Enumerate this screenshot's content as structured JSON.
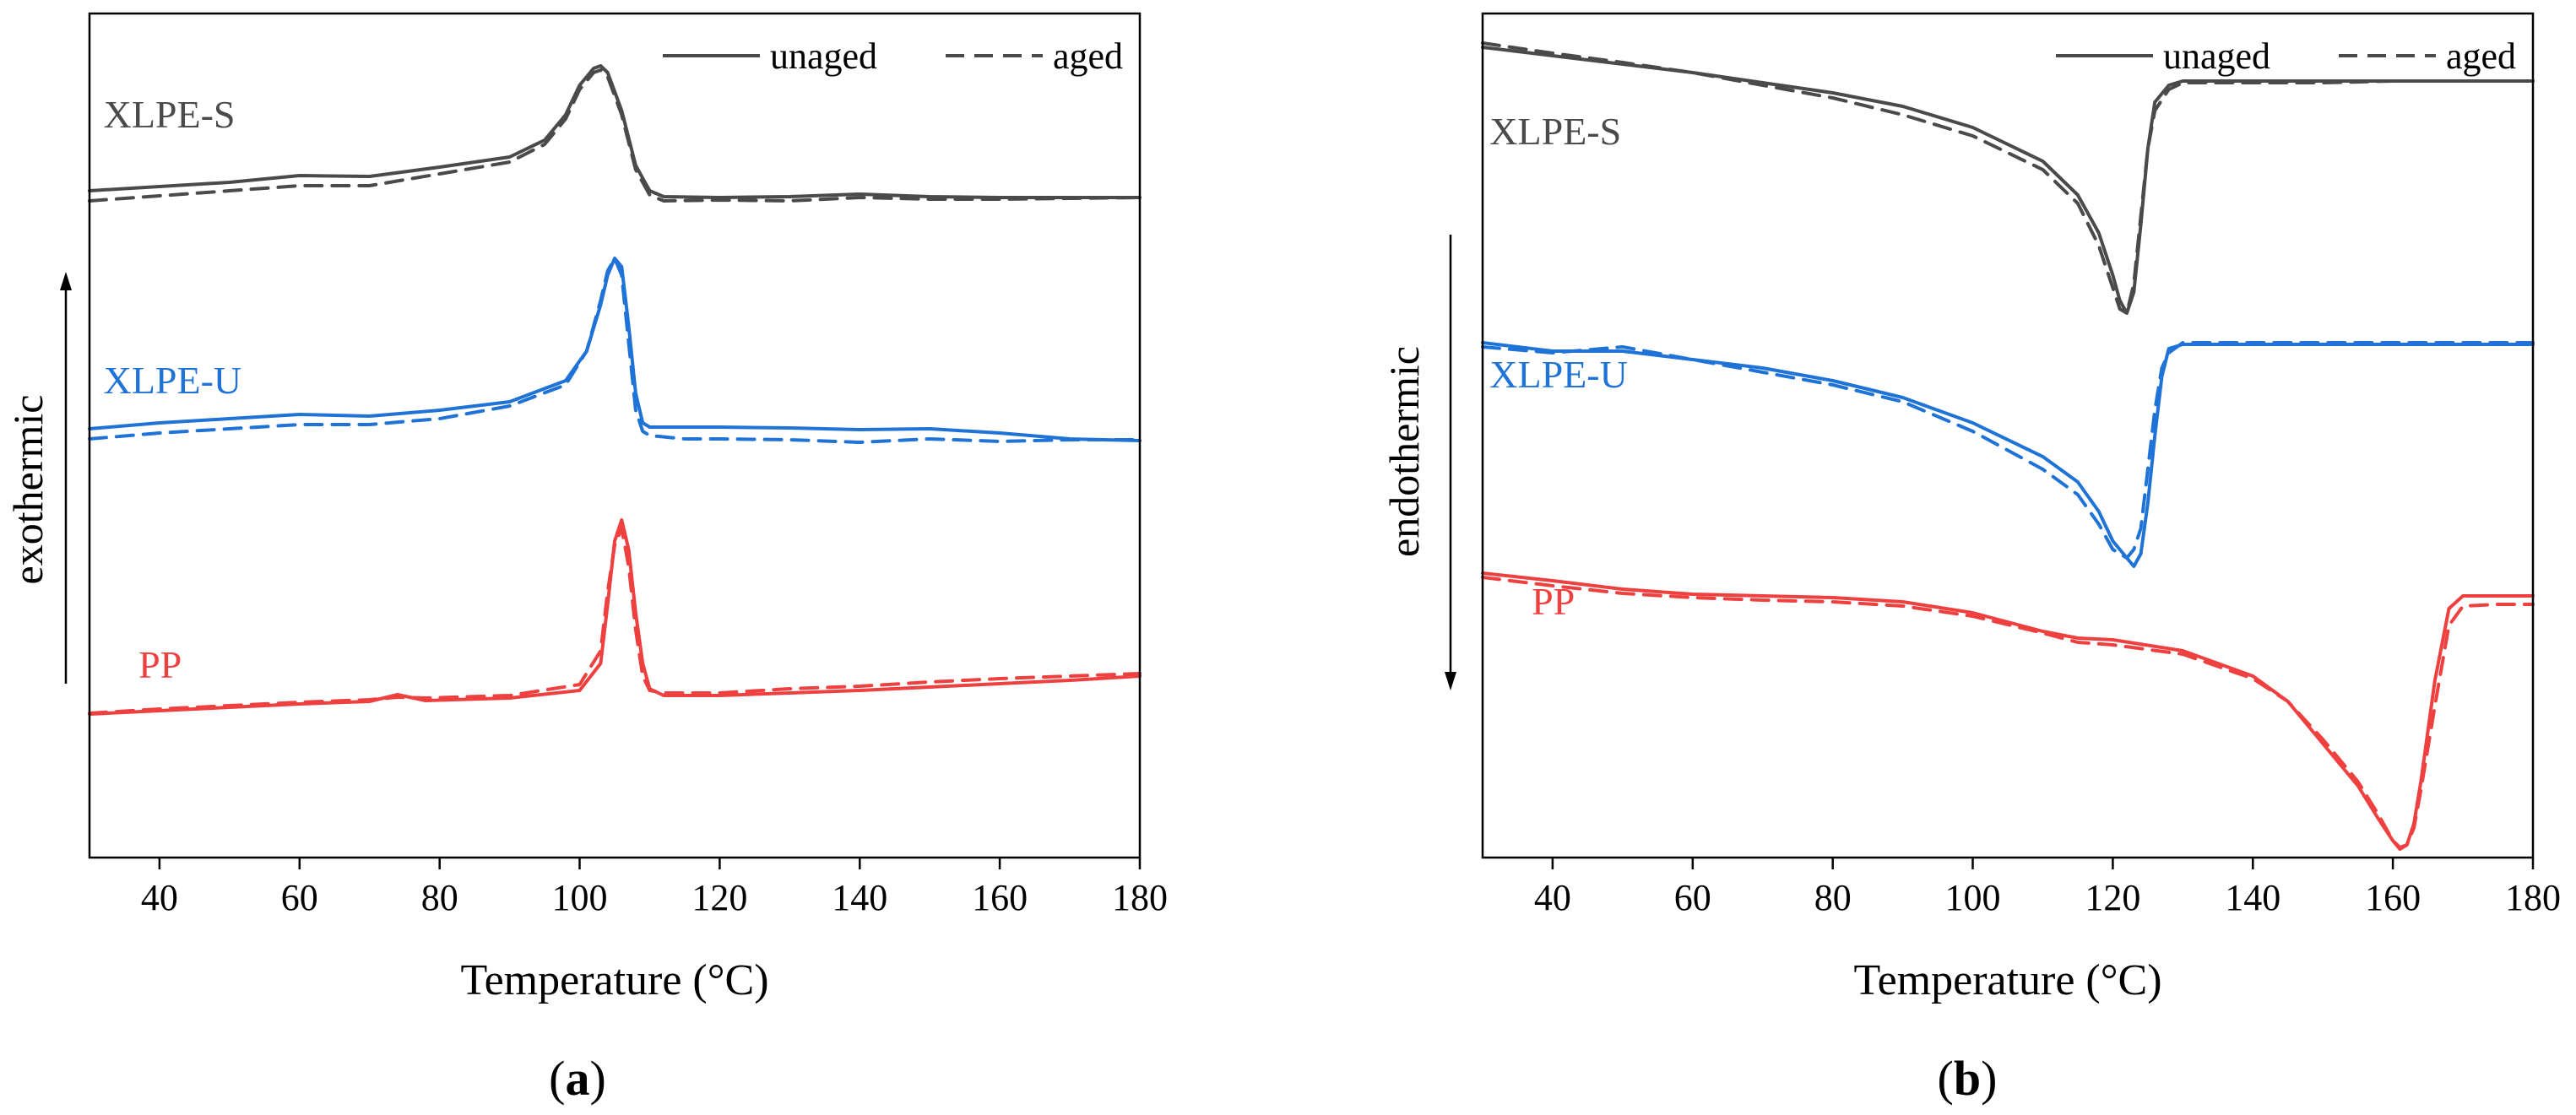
{
  "chart_data": [
    {
      "type": "line",
      "panel_label": {
        "open": "(",
        "letter": "a",
        "close": ")"
      },
      "xlabel": "Temperature (°C)",
      "ylabel": "exothermic",
      "ylabel_arrow": "up",
      "xlim": [
        30,
        180
      ],
      "ylim": [
        0,
        100
      ],
      "xticks": [
        40,
        60,
        80,
        100,
        120,
        140,
        160,
        180
      ],
      "yticks_visible": false,
      "legend": {
        "position": "top-right",
        "entries": [
          {
            "label": "unaged",
            "style": "solid"
          },
          {
            "label": "aged",
            "style": "dashed"
          }
        ]
      },
      "series": [
        {
          "sample": "XLPE-S",
          "name": "XLPE-S unaged",
          "color": "#4a4a4a",
          "style": "solid",
          "label_at": [
            32,
            86.5
          ],
          "x": [
            30,
            40,
            50,
            60,
            70,
            80,
            90,
            95,
            98,
            100,
            102,
            103,
            104,
            106,
            108,
            110,
            112,
            120,
            130,
            140,
            150,
            160,
            170,
            180
          ],
          "y": [
            79,
            79.5,
            80,
            80.8,
            80.7,
            81.8,
            83,
            85,
            88,
            91.5,
            93.5,
            93.8,
            93,
            88.5,
            82,
            79,
            78.3,
            78.2,
            78.3,
            78.6,
            78.3,
            78.2,
            78.2,
            78.2
          ]
        },
        {
          "sample": "XLPE-S",
          "name": "XLPE-S aged",
          "color": "#4a4a4a",
          "style": "dashed",
          "x": [
            30,
            40,
            50,
            60,
            70,
            80,
            90,
            95,
            98,
            100,
            102,
            103,
            104,
            106,
            108,
            110,
            112,
            120,
            130,
            140,
            150,
            160,
            170,
            180
          ],
          "y": [
            77.8,
            78.4,
            79,
            79.6,
            79.6,
            81,
            82.4,
            84.5,
            87.5,
            91,
            93,
            93.3,
            92.5,
            88,
            81.5,
            78.5,
            77.8,
            77.9,
            77.8,
            78.2,
            78,
            78,
            78.1,
            78.2
          ]
        },
        {
          "sample": "XLPE-U",
          "name": "XLPE-U unaged",
          "color": "#1f73d6",
          "style": "solid",
          "label_at": [
            32,
            55
          ],
          "x": [
            30,
            40,
            50,
            60,
            70,
            80,
            90,
            98,
            101,
            103,
            104,
            105,
            106,
            107,
            108,
            109,
            110,
            115,
            120,
            130,
            140,
            150,
            160,
            170,
            180
          ],
          "y": [
            50.8,
            51.5,
            52,
            52.5,
            52.3,
            53,
            54,
            56.5,
            60,
            65.5,
            69,
            71,
            70,
            63,
            55,
            51.5,
            51,
            51,
            51,
            50.9,
            50.7,
            50.8,
            50.3,
            49.6,
            49.4
          ]
        },
        {
          "sample": "XLPE-U",
          "name": "XLPE-U aged",
          "color": "#1f73d6",
          "style": "dashed",
          "x": [
            30,
            40,
            50,
            60,
            70,
            80,
            90,
            98,
            101,
            103,
            104,
            105,
            106,
            107,
            108,
            109,
            110,
            115,
            120,
            130,
            140,
            150,
            160,
            170,
            180
          ],
          "y": [
            49.6,
            50.3,
            50.8,
            51.3,
            51.3,
            52,
            53.5,
            56,
            60,
            66,
            69.5,
            71,
            69,
            61,
            53,
            50.5,
            50,
            49.6,
            49.6,
            49.5,
            49.2,
            49.6,
            49.3,
            49.5,
            49.5
          ]
        },
        {
          "sample": "PP",
          "name": "PP unaged",
          "color": "#ef4040",
          "style": "solid",
          "label_at": [
            37,
            21.3
          ],
          "x": [
            30,
            40,
            50,
            60,
            70,
            74,
            78,
            90,
            100,
            103,
            104,
            105,
            106,
            107,
            108,
            109,
            110,
            112,
            120,
            130,
            140,
            150,
            160,
            170,
            180
          ],
          "y": [
            17,
            17.4,
            17.8,
            18.2,
            18.5,
            19.3,
            18.6,
            18.9,
            19.8,
            23,
            30,
            37.5,
            40,
            36.5,
            29,
            23,
            20,
            19.2,
            19.2,
            19.5,
            19.8,
            20.2,
            20.6,
            21,
            21.5
          ]
        },
        {
          "sample": "PP",
          "name": "PP aged",
          "color": "#ef4040",
          "style": "dashed",
          "x": [
            30,
            40,
            50,
            60,
            70,
            74,
            78,
            90,
            100,
            103,
            104,
            105,
            106,
            107,
            108,
            109,
            110,
            112,
            120,
            130,
            140,
            150,
            160,
            170,
            180
          ],
          "y": [
            17.1,
            17.6,
            18,
            18.4,
            18.7,
            19,
            18.9,
            19.2,
            20.5,
            24.5,
            31.5,
            37,
            39,
            34.5,
            27,
            21.5,
            19.8,
            19.5,
            19.5,
            20,
            20.3,
            20.8,
            21.2,
            21.5,
            21.8
          ]
        }
      ]
    },
    {
      "type": "line",
      "panel_label": {
        "open": "(",
        "letter": "b",
        "close": ")"
      },
      "xlabel": "Temperature (°C)",
      "ylabel": "endothermic",
      "ylabel_arrow": "down",
      "xlim": [
        30,
        180
      ],
      "ylim": [
        0,
        100
      ],
      "xticks": [
        40,
        60,
        80,
        100,
        120,
        140,
        160,
        180
      ],
      "yticks_visible": false,
      "legend": {
        "position": "top-right",
        "entries": [
          {
            "label": "unaged",
            "style": "solid"
          },
          {
            "label": "aged",
            "style": "dashed"
          }
        ]
      },
      "series": [
        {
          "sample": "XLPE-S",
          "name": "XLPE-S unaged",
          "color": "#4a4a4a",
          "style": "solid",
          "label_at": [
            31,
            84.5
          ],
          "x": [
            30,
            40,
            50,
            60,
            70,
            80,
            90,
            100,
            110,
            115,
            118,
            120,
            121,
            122,
            123,
            124,
            125,
            126,
            128,
            130,
            140,
            150,
            160,
            170,
            180
          ],
          "y": [
            96,
            95,
            94,
            93,
            91.8,
            90.6,
            89,
            86.5,
            82.5,
            78.5,
            74,
            69,
            66,
            64.5,
            67,
            75,
            84,
            89.5,
            91.5,
            92,
            92,
            92,
            92,
            92,
            92
          ]
        },
        {
          "sample": "XLPE-S",
          "name": "XLPE-S aged",
          "color": "#4a4a4a",
          "style": "dashed",
          "x": [
            30,
            40,
            50,
            60,
            70,
            80,
            90,
            100,
            110,
            115,
            118,
            120,
            121,
            122,
            123,
            124,
            125,
            126,
            128,
            130,
            140,
            150,
            160,
            170,
            180
          ],
          "y": [
            96.5,
            95.3,
            94.2,
            93,
            91.5,
            90,
            88,
            85.5,
            81.5,
            77.5,
            72.5,
            67.5,
            65,
            64.5,
            68,
            76,
            84,
            88.5,
            91,
            91.8,
            91.8,
            91.8,
            92,
            92,
            92
          ]
        },
        {
          "sample": "XLPE-U",
          "name": "XLPE-U unaged",
          "color": "#1f73d6",
          "style": "solid",
          "label_at": [
            31,
            55.7
          ],
          "x": [
            30,
            40,
            50,
            60,
            70,
            80,
            90,
            100,
            110,
            115,
            118,
            120,
            122,
            123,
            124,
            125,
            126,
            127,
            128,
            130,
            140,
            150,
            160,
            170,
            180
          ],
          "y": [
            61,
            60,
            60,
            59,
            58,
            56.5,
            54.5,
            51.5,
            47.5,
            44.5,
            41,
            37.5,
            35.5,
            34.5,
            36,
            42,
            50,
            57,
            60.3,
            60.8,
            60.8,
            60.8,
            60.8,
            60.8,
            60.8
          ]
        },
        {
          "sample": "XLPE-U",
          "name": "XLPE-U aged",
          "color": "#1f73d6",
          "style": "dashed",
          "x": [
            30,
            40,
            50,
            60,
            70,
            80,
            90,
            100,
            110,
            115,
            118,
            120,
            122,
            123,
            124,
            125,
            126,
            127,
            128,
            130,
            140,
            150,
            160,
            170,
            180
          ],
          "y": [
            60.5,
            59.8,
            60.5,
            59,
            57.5,
            56,
            54,
            50.5,
            46,
            43,
            39.5,
            36.5,
            35.5,
            36.5,
            39,
            46,
            53,
            58,
            59.8,
            61,
            61,
            61,
            61,
            61,
            61
          ]
        },
        {
          "sample": "PP",
          "name": "PP unaged",
          "color": "#ef4040",
          "style": "solid",
          "label_at": [
            37,
            28.8
          ],
          "x": [
            30,
            40,
            50,
            60,
            70,
            80,
            90,
            100,
            110,
            115,
            120,
            130,
            140,
            145,
            150,
            155,
            158,
            160,
            161,
            162,
            163,
            164,
            166,
            168,
            170,
            175,
            180
          ],
          "y": [
            33.7,
            32.8,
            31.8,
            31.2,
            31,
            30.8,
            30.3,
            29,
            26.8,
            26,
            25.8,
            24.5,
            21.5,
            18.5,
            13.5,
            8.5,
            4.5,
            2,
            1,
            1.5,
            4,
            9,
            21,
            29.5,
            31,
            31,
            31
          ]
        },
        {
          "sample": "PP",
          "name": "PP aged",
          "color": "#ef4040",
          "style": "dashed",
          "x": [
            30,
            40,
            50,
            60,
            70,
            80,
            90,
            100,
            110,
            115,
            120,
            130,
            140,
            145,
            150,
            155,
            158,
            160,
            161,
            162,
            163,
            164,
            166,
            168,
            170,
            175,
            180
          ],
          "y": [
            33.2,
            32.2,
            31.3,
            30.8,
            30.5,
            30.3,
            29.8,
            28.6,
            26.6,
            25.5,
            25.2,
            24.1,
            21.2,
            18.5,
            14,
            9,
            5,
            2,
            1.2,
            1.5,
            3.5,
            8,
            18,
            27.5,
            29.8,
            30,
            30
          ]
        }
      ]
    }
  ]
}
